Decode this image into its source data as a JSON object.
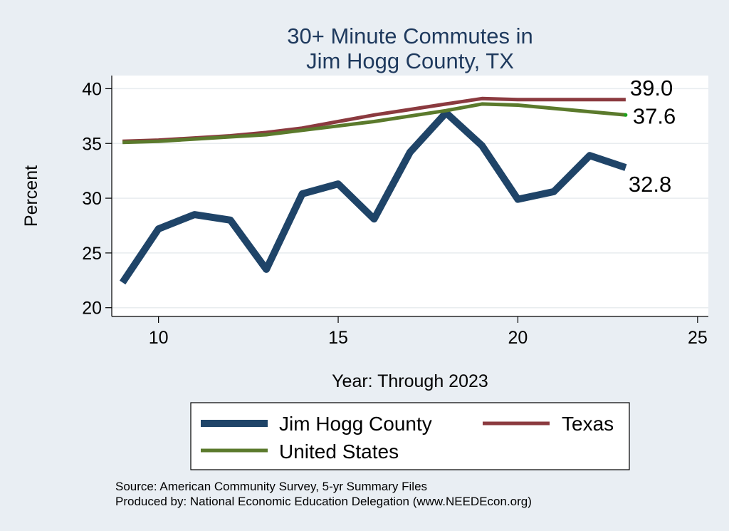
{
  "chart_data": {
    "type": "line",
    "title": [
      "30+ Minute Commutes in",
      "Jim Hogg County, TX"
    ],
    "xlabel": "Year: Through 2023",
    "ylabel": "Percent",
    "xlim": [
      8.7,
      25.3
    ],
    "ylim": [
      19.2,
      41.2
    ],
    "xticks": [
      10,
      15,
      20,
      25
    ],
    "yticks": [
      20,
      25,
      30,
      35,
      40
    ],
    "grid": true,
    "series": [
      {
        "name": "Jim Hogg County",
        "color": "#1f4468",
        "x": [
          9,
          10,
          11,
          12,
          13,
          14,
          15,
          16,
          17,
          18,
          19,
          20,
          21,
          22,
          23
        ],
        "values": [
          22.3,
          27.2,
          28.5,
          28.0,
          23.5,
          30.4,
          31.3,
          28.1,
          34.2,
          37.8,
          34.8,
          29.9,
          30.6,
          33.9,
          32.8
        ],
        "end_label": "32.8"
      },
      {
        "name": "Texas",
        "color": "#8b3a3f",
        "x": [
          9,
          10,
          11,
          12,
          13,
          14,
          15,
          16,
          17,
          18,
          19,
          20,
          21,
          22,
          23
        ],
        "values": [
          35.2,
          35.3,
          35.5,
          35.7,
          36.0,
          36.4,
          37.0,
          37.6,
          38.1,
          38.6,
          39.1,
          39.0,
          39.0,
          39.0,
          39.0
        ],
        "end_label": "39.0"
      },
      {
        "name": "United States",
        "color": "#5b7a2c",
        "x": [
          9,
          10,
          11,
          12,
          13,
          14,
          15,
          16,
          17,
          18,
          19,
          20,
          21,
          22,
          23
        ],
        "values": [
          35.1,
          35.2,
          35.4,
          35.6,
          35.8,
          36.2,
          36.6,
          37.0,
          37.5,
          38.0,
          38.6,
          38.5,
          38.2,
          37.9,
          37.6
        ],
        "end_label": "37.6"
      }
    ],
    "legend": {
      "placement": "bottom",
      "order": [
        "Jim Hogg County",
        "Texas",
        "United States"
      ]
    },
    "source_lines": [
      "Source: American Community Survey, 5-yr Summary Files",
      "Produced by: National Economic Education Delegation (www.NEEDEcon.org)"
    ]
  }
}
